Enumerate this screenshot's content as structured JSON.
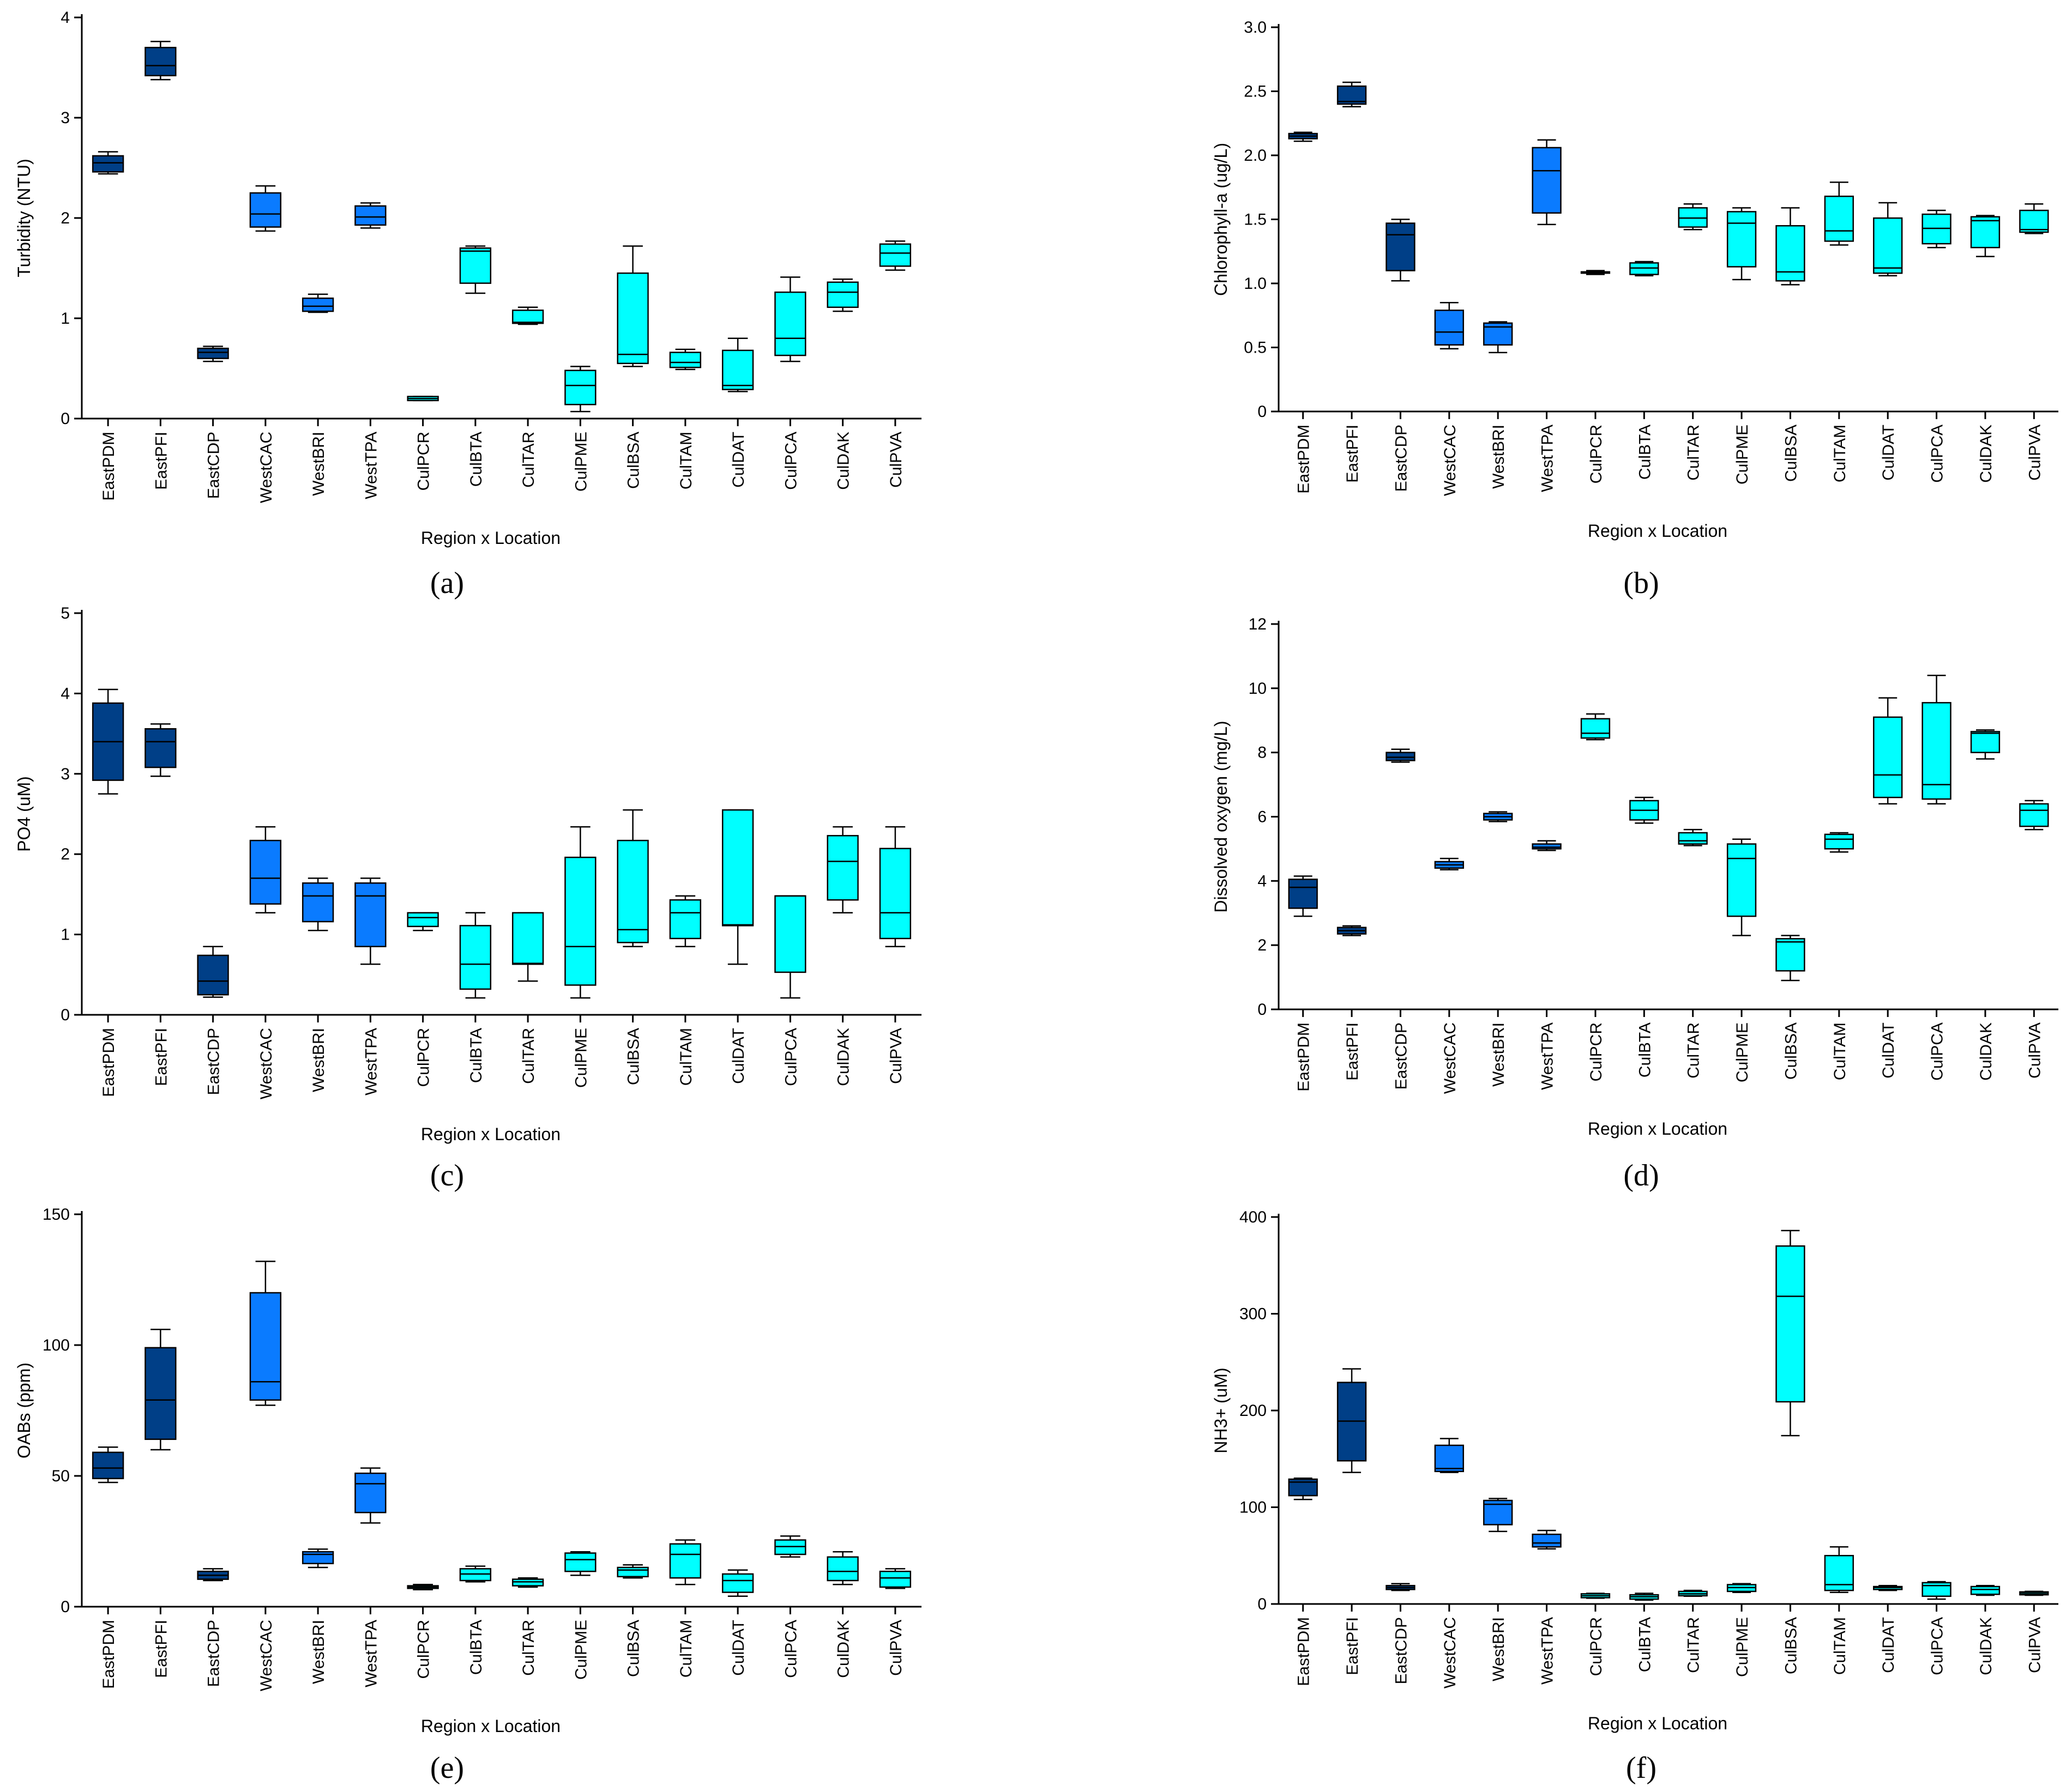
{
  "figure": {
    "colors": {
      "east": "#003f87",
      "west": "#0a7bff",
      "cul": "#00ffff",
      "stroke": "#000000"
    },
    "region_colors": [
      "east",
      "east",
      "east",
      "west",
      "west",
      "west",
      "cul",
      "cul",
      "cul",
      "cul",
      "cul",
      "cul",
      "cul",
      "cul",
      "cul",
      "cul"
    ]
  },
  "chart_data": [
    {
      "panel": "a",
      "panel_label": "(a)",
      "type": "box",
      "xlabel": "Region x Location",
      "ylabel": "Turbidity (NTU)",
      "ylim": [
        0,
        4
      ],
      "yticks": [
        0,
        1,
        2,
        3,
        4
      ],
      "ytick_labels": [
        "0",
        "1",
        "2",
        "3",
        "4"
      ],
      "categories": [
        "EastPDM",
        "EastPFI",
        "EastCDP",
        "WestCAC",
        "WestBRI",
        "WestTPA",
        "CulPCR",
        "CulBTA",
        "CulTAR",
        "CulPME",
        "CulBSA",
        "CulTAM",
        "CulDAT",
        "CulPCA",
        "CulDAK",
        "CulPVA"
      ],
      "boxes": [
        {
          "min": 2.44,
          "q1": 2.46,
          "median": 2.55,
          "q3": 2.62,
          "max": 2.66
        },
        {
          "min": 3.38,
          "q1": 3.42,
          "median": 3.52,
          "q3": 3.7,
          "max": 3.76
        },
        {
          "min": 0.57,
          "q1": 0.6,
          "median": 0.66,
          "q3": 0.7,
          "max": 0.72
        },
        {
          "min": 1.87,
          "q1": 1.91,
          "median": 2.04,
          "q3": 2.25,
          "max": 2.32
        },
        {
          "min": 1.06,
          "q1": 1.07,
          "median": 1.12,
          "q3": 1.2,
          "max": 1.24
        },
        {
          "min": 1.9,
          "q1": 1.93,
          "median": 2.01,
          "q3": 2.12,
          "max": 2.15
        },
        {
          "min": 0.18,
          "q1": 0.18,
          "median": 0.2,
          "q3": 0.22,
          "max": 0.22
        },
        {
          "min": 1.25,
          "q1": 1.35,
          "median": 1.67,
          "q3": 1.7,
          "max": 1.72
        },
        {
          "min": 0.94,
          "q1": 0.95,
          "median": 0.96,
          "q3": 1.08,
          "max": 1.11
        },
        {
          "min": 0.07,
          "q1": 0.14,
          "median": 0.33,
          "q3": 0.48,
          "max": 0.52
        },
        {
          "min": 0.52,
          "q1": 0.55,
          "median": 0.64,
          "q3": 1.45,
          "max": 1.72
        },
        {
          "min": 0.49,
          "q1": 0.51,
          "median": 0.56,
          "q3": 0.66,
          "max": 0.69
        },
        {
          "min": 0.27,
          "q1": 0.29,
          "median": 0.33,
          "q3": 0.68,
          "max": 0.8
        },
        {
          "min": 0.57,
          "q1": 0.63,
          "median": 0.8,
          "q3": 1.26,
          "max": 1.41
        },
        {
          "min": 1.07,
          "q1": 1.11,
          "median": 1.26,
          "q3": 1.36,
          "max": 1.39
        },
        {
          "min": 1.48,
          "q1": 1.52,
          "median": 1.65,
          "q3": 1.74,
          "max": 1.77
        }
      ]
    },
    {
      "panel": "b",
      "panel_label": "(b)",
      "type": "box",
      "xlabel": "Region x Location",
      "ylabel": "Chlorophyll-a (ug/L)",
      "ylim": [
        0,
        3
      ],
      "yticks": [
        0,
        0.5,
        1,
        1.5,
        2,
        2.5,
        3
      ],
      "ytick_labels": [
        "0",
        "0.5",
        "1.0",
        "1.5",
        "2.0",
        "2.5",
        "3.0"
      ],
      "categories": [
        "EastPDM",
        "EastPFI",
        "EastCDP",
        "WestCAC",
        "WestBRI",
        "WestTPA",
        "CulPCR",
        "CulBTA",
        "CulTAR",
        "CulPME",
        "CulBSA",
        "CulTAM",
        "CulDAT",
        "CulPCA",
        "CulDAK",
        "CulPVA"
      ],
      "boxes": [
        {
          "min": 2.11,
          "q1": 2.13,
          "median": 2.15,
          "q3": 2.17,
          "max": 2.18
        },
        {
          "min": 2.38,
          "q1": 2.4,
          "median": 2.42,
          "q3": 2.54,
          "max": 2.57
        },
        {
          "min": 1.02,
          "q1": 1.1,
          "median": 1.38,
          "q3": 1.47,
          "max": 1.5
        },
        {
          "min": 0.49,
          "q1": 0.52,
          "median": 0.62,
          "q3": 0.79,
          "max": 0.85
        },
        {
          "min": 0.46,
          "q1": 0.52,
          "median": 0.66,
          "q3": 0.69,
          "max": 0.7
        },
        {
          "min": 1.46,
          "q1": 1.55,
          "median": 1.88,
          "q3": 2.06,
          "max": 2.12
        },
        {
          "min": 1.07,
          "q1": 1.08,
          "median": 1.09,
          "q3": 1.09,
          "max": 1.1
        },
        {
          "min": 1.06,
          "q1": 1.07,
          "median": 1.12,
          "q3": 1.16,
          "max": 1.17
        },
        {
          "min": 1.42,
          "q1": 1.44,
          "median": 1.51,
          "q3": 1.59,
          "max": 1.62
        },
        {
          "min": 1.03,
          "q1": 1.13,
          "median": 1.47,
          "q3": 1.56,
          "max": 1.59
        },
        {
          "min": 0.99,
          "q1": 1.02,
          "median": 1.09,
          "q3": 1.45,
          "max": 1.59
        },
        {
          "min": 1.3,
          "q1": 1.33,
          "median": 1.41,
          "q3": 1.68,
          "max": 1.79
        },
        {
          "min": 1.06,
          "q1": 1.08,
          "median": 1.12,
          "q3": 1.51,
          "max": 1.63
        },
        {
          "min": 1.28,
          "q1": 1.31,
          "median": 1.43,
          "q3": 1.54,
          "max": 1.57
        },
        {
          "min": 1.21,
          "q1": 1.28,
          "median": 1.49,
          "q3": 1.52,
          "max": 1.53
        },
        {
          "min": 1.39,
          "q1": 1.4,
          "median": 1.42,
          "q3": 1.57,
          "max": 1.62
        }
      ]
    },
    {
      "panel": "c",
      "panel_label": "(c)",
      "type": "box",
      "xlabel": "Region x Location",
      "ylabel": "PO4 (uM)",
      "ylim": [
        0,
        5
      ],
      "yticks": [
        0,
        1,
        2,
        3,
        4,
        5
      ],
      "ytick_labels": [
        "0",
        "1",
        "2",
        "3",
        "4",
        "5"
      ],
      "categories": [
        "EastPDM",
        "EastPFI",
        "EastCDP",
        "WestCAC",
        "WestBRI",
        "WestTPA",
        "CulPCR",
        "CulBTA",
        "CulTAR",
        "CulPME",
        "CulBSA",
        "CulTAM",
        "CulDAT",
        "CulPCA",
        "CulDAK",
        "CulPVA"
      ],
      "boxes": [
        {
          "min": 2.75,
          "q1": 2.92,
          "median": 3.4,
          "q3": 3.88,
          "max": 4.05
        },
        {
          "min": 2.97,
          "q1": 3.08,
          "median": 3.4,
          "q3": 3.56,
          "max": 3.62
        },
        {
          "min": 0.22,
          "q1": 0.25,
          "median": 0.42,
          "q3": 0.74,
          "max": 0.85
        },
        {
          "min": 1.27,
          "q1": 1.38,
          "median": 1.7,
          "q3": 2.17,
          "max": 2.34
        },
        {
          "min": 1.05,
          "q1": 1.16,
          "median": 1.48,
          "q3": 1.64,
          "max": 1.7
        },
        {
          "min": 0.63,
          "q1": 0.85,
          "median": 1.48,
          "q3": 1.64,
          "max": 1.7
        },
        {
          "min": 1.05,
          "q1": 1.1,
          "median": 1.21,
          "q3": 1.27,
          "max": 1.27
        },
        {
          "min": 0.21,
          "q1": 0.32,
          "median": 0.63,
          "q3": 1.11,
          "max": 1.27
        },
        {
          "min": 0.42,
          "q1": 0.63,
          "median": 0.64,
          "q3": 1.27,
          "max": 1.27
        },
        {
          "min": 0.21,
          "q1": 0.37,
          "median": 0.85,
          "q3": 1.96,
          "max": 2.34
        },
        {
          "min": 0.85,
          "q1": 0.9,
          "median": 1.06,
          "q3": 2.17,
          "max": 2.55
        },
        {
          "min": 0.85,
          "q1": 0.95,
          "median": 1.27,
          "q3": 1.43,
          "max": 1.48
        },
        {
          "min": 0.63,
          "q1": 1.11,
          "median": 1.12,
          "q3": 2.55,
          "max": 2.55
        },
        {
          "min": 0.21,
          "q1": 0.53,
          "median": 1.48,
          "q3": 1.48,
          "max": 1.48
        },
        {
          "min": 1.27,
          "q1": 1.43,
          "median": 1.91,
          "q3": 2.23,
          "max": 2.34
        },
        {
          "min": 0.85,
          "q1": 0.95,
          "median": 1.27,
          "q3": 2.07,
          "max": 2.34
        }
      ]
    },
    {
      "panel": "d",
      "panel_label": "(d)",
      "type": "box",
      "xlabel": "Region x Location",
      "ylabel": "Dissolved oxygen (mg/L)",
      "ylim": [
        0,
        12
      ],
      "yticks": [
        0,
        2,
        4,
        6,
        8,
        10,
        12
      ],
      "ytick_labels": [
        "0",
        "2",
        "4",
        "6",
        "8",
        "10",
        "12"
      ],
      "categories": [
        "EastPDM",
        "EastPFI",
        "EastCDP",
        "WestCAC",
        "WestBRI",
        "WestTPA",
        "CulPCR",
        "CulBTA",
        "CulTAR",
        "CulPME",
        "CulBSA",
        "CulTAM",
        "CulDAT",
        "CulPCA",
        "CulDAK",
        "CulPVA"
      ],
      "boxes": [
        {
          "min": 2.9,
          "q1": 3.15,
          "median": 3.8,
          "q3": 4.05,
          "max": 4.15
        },
        {
          "min": 2.3,
          "q1": 2.35,
          "median": 2.45,
          "q3": 2.55,
          "max": 2.6
        },
        {
          "min": 7.7,
          "q1": 7.75,
          "median": 7.85,
          "q3": 8.0,
          "max": 8.1
        },
        {
          "min": 4.35,
          "q1": 4.4,
          "median": 4.5,
          "q3": 4.6,
          "max": 4.7
        },
        {
          "min": 5.85,
          "q1": 5.9,
          "median": 6.0,
          "q3": 6.1,
          "max": 6.15
        },
        {
          "min": 4.95,
          "q1": 5.0,
          "median": 5.05,
          "q3": 5.15,
          "max": 5.25
        },
        {
          "min": 8.4,
          "q1": 8.45,
          "median": 8.6,
          "q3": 9.05,
          "max": 9.2
        },
        {
          "min": 5.8,
          "q1": 5.9,
          "median": 6.2,
          "q3": 6.5,
          "max": 6.6
        },
        {
          "min": 5.1,
          "q1": 5.15,
          "median": 5.25,
          "q3": 5.5,
          "max": 5.6
        },
        {
          "min": 2.3,
          "q1": 2.9,
          "median": 4.7,
          "q3": 5.15,
          "max": 5.3
        },
        {
          "min": 0.9,
          "q1": 1.2,
          "median": 2.1,
          "q3": 2.2,
          "max": 2.3
        },
        {
          "min": 4.9,
          "q1": 5.0,
          "median": 5.3,
          "q3": 5.45,
          "max": 5.5
        },
        {
          "min": 6.4,
          "q1": 6.6,
          "median": 7.3,
          "q3": 9.1,
          "max": 9.7
        },
        {
          "min": 6.4,
          "q1": 6.55,
          "median": 7.0,
          "q3": 9.55,
          "max": 10.4
        },
        {
          "min": 7.8,
          "q1": 8.0,
          "median": 8.6,
          "q3": 8.65,
          "max": 8.7
        },
        {
          "min": 5.6,
          "q1": 5.7,
          "median": 6.2,
          "q3": 6.4,
          "max": 6.5
        }
      ]
    },
    {
      "panel": "e",
      "panel_label": "(e)",
      "type": "box",
      "xlabel": "Region x Location",
      "ylabel": "OABs (ppm)",
      "ylim": [
        0,
        150
      ],
      "yticks": [
        0,
        50,
        100,
        150
      ],
      "ytick_labels": [
        "0",
        "50",
        "100",
        "150"
      ],
      "categories": [
        "EastPDM",
        "EastPFI",
        "EastCDP",
        "WestCAC",
        "WestBRI",
        "WestTPA",
        "CulPCR",
        "CulBTA",
        "CulTAR",
        "CulPME",
        "CulBSA",
        "CulTAM",
        "CulDAT",
        "CulPCA",
        "CulDAK",
        "CulPVA"
      ],
      "boxes": [
        {
          "min": 47.5,
          "q1": 49,
          "median": 53,
          "q3": 59,
          "max": 61
        },
        {
          "min": 60,
          "q1": 64,
          "median": 79,
          "q3": 99,
          "max": 106
        },
        {
          "min": 10,
          "q1": 10.5,
          "median": 12,
          "q3": 13.5,
          "max": 14.5
        },
        {
          "min": 77,
          "q1": 79,
          "median": 86,
          "q3": 120,
          "max": 132
        },
        {
          "min": 15,
          "q1": 16.5,
          "median": 20,
          "q3": 21,
          "max": 22
        },
        {
          "min": 32,
          "q1": 36,
          "median": 47,
          "q3": 51,
          "max": 53
        },
        {
          "min": 6.5,
          "q1": 7,
          "median": 7.5,
          "q3": 8,
          "max": 8.5
        },
        {
          "min": 9.5,
          "q1": 10,
          "median": 12.5,
          "q3": 14.5,
          "max": 15.5
        },
        {
          "min": 7.5,
          "q1": 8,
          "median": 9.5,
          "q3": 10.5,
          "max": 11
        },
        {
          "min": 12,
          "q1": 13.5,
          "median": 18,
          "q3": 20.5,
          "max": 21
        },
        {
          "min": 11,
          "q1": 11.5,
          "median": 14,
          "q3": 15,
          "max": 16
        },
        {
          "min": 8.5,
          "q1": 11,
          "median": 20,
          "q3": 24,
          "max": 25.5
        },
        {
          "min": 4,
          "q1": 5.5,
          "median": 10,
          "q3": 12.5,
          "max": 14
        },
        {
          "min": 19,
          "q1": 20,
          "median": 23,
          "q3": 25.5,
          "max": 27
        },
        {
          "min": 8.5,
          "q1": 10,
          "median": 13.5,
          "q3": 19,
          "max": 21
        },
        {
          "min": 7,
          "q1": 7.5,
          "median": 11,
          "q3": 13.5,
          "max": 14.5
        }
      ]
    },
    {
      "panel": "f",
      "panel_label": "(f)",
      "type": "box",
      "xlabel": "Region x Location",
      "ylabel": "NH3+ (uM)",
      "ylim": [
        0,
        400
      ],
      "yticks": [
        0,
        100,
        200,
        300,
        400
      ],
      "ytick_labels": [
        "0",
        "100",
        "200",
        "300",
        "400"
      ],
      "categories": [
        "EastPDM",
        "EastPFI",
        "EastCDP",
        "WestCAC",
        "WestBRI",
        "WestTPA",
        "CulPCR",
        "CulBTA",
        "CulTAR",
        "CulPME",
        "CulBSA",
        "CulTAM",
        "CulDAT",
        "CulPCA",
        "CulDAK",
        "CulPVA"
      ],
      "boxes": [
        {
          "min": 108,
          "q1": 112,
          "median": 126,
          "q3": 129,
          "max": 130
        },
        {
          "min": 136,
          "q1": 148,
          "median": 189,
          "q3": 229,
          "max": 243
        },
        {
          "min": 14,
          "q1": 15,
          "median": 17,
          "q3": 19,
          "max": 21
        },
        {
          "min": 136,
          "q1": 137,
          "median": 140,
          "q3": 164,
          "max": 171
        },
        {
          "min": 75,
          "q1": 82,
          "median": 103,
          "q3": 107,
          "max": 109
        },
        {
          "min": 57,
          "q1": 59,
          "median": 63,
          "q3": 72,
          "max": 76
        },
        {
          "min": 6,
          "q1": 6.5,
          "median": 8.5,
          "q3": 10.5,
          "max": 11
        },
        {
          "min": 4,
          "q1": 5,
          "median": 7.5,
          "q3": 9.5,
          "max": 11
        },
        {
          "min": 8,
          "q1": 8.5,
          "median": 10.5,
          "q3": 13,
          "max": 14
        },
        {
          "min": 12,
          "q1": 13,
          "median": 17,
          "q3": 20,
          "max": 21
        },
        {
          "min": 174,
          "q1": 209,
          "median": 318,
          "q3": 370,
          "max": 386
        },
        {
          "min": 12,
          "q1": 14,
          "median": 20,
          "q3": 50,
          "max": 59
        },
        {
          "min": 14,
          "q1": 15,
          "median": 17,
          "q3": 18,
          "max": 19
        },
        {
          "min": 5,
          "q1": 8,
          "median": 19,
          "q3": 22,
          "max": 23
        },
        {
          "min": 9,
          "q1": 10,
          "median": 15,
          "q3": 18,
          "max": 19
        },
        {
          "min": 9,
          "q1": 9.5,
          "median": 11,
          "q3": 12.5,
          "max": 13
        }
      ]
    }
  ]
}
